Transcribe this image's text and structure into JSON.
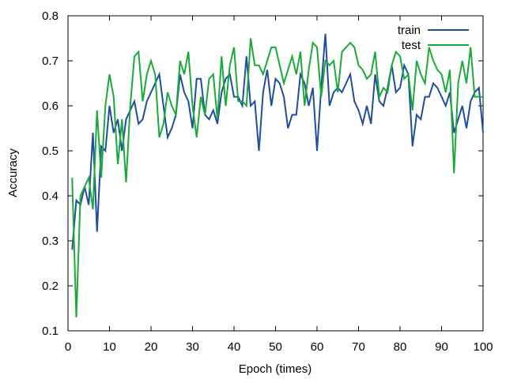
{
  "chart_data": {
    "type": "line",
    "title": "",
    "xlabel": "Epoch (times)",
    "ylabel": "Accuracy",
    "xlim": [
      0,
      100
    ],
    "ylim": [
      0.1,
      0.8
    ],
    "xticks": [
      0,
      10,
      20,
      30,
      40,
      50,
      60,
      70,
      80,
      90,
      100
    ],
    "yticks": [
      0.1,
      0.2,
      0.3,
      0.4,
      0.5,
      0.6,
      0.7,
      0.8
    ],
    "xtick_labels": [
      "0",
      "10",
      "20",
      "30",
      "40",
      "50",
      "60",
      "70",
      "80",
      "90",
      "100"
    ],
    "ytick_labels": [
      "0.1",
      "0.2",
      "0.3",
      "0.4",
      "0.5",
      "0.6",
      "0.7",
      "0.8"
    ],
    "grid": false,
    "legend_position": "top-right",
    "x": [
      1,
      2,
      3,
      4,
      5,
      6,
      7,
      8,
      9,
      10,
      11,
      12,
      13,
      14,
      15,
      16,
      17,
      18,
      19,
      20,
      21,
      22,
      23,
      24,
      25,
      26,
      27,
      28,
      29,
      30,
      31,
      32,
      33,
      34,
      35,
      36,
      37,
      38,
      39,
      40,
      41,
      42,
      43,
      44,
      45,
      46,
      47,
      48,
      49,
      50,
      51,
      52,
      53,
      54,
      55,
      56,
      57,
      58,
      59,
      60,
      61,
      62,
      63,
      64,
      65,
      66,
      67,
      68,
      69,
      70,
      71,
      72,
      73,
      74,
      75,
      76,
      77,
      78,
      79,
      80,
      81,
      82,
      83,
      84,
      85,
      86,
      87,
      88,
      89,
      90,
      91,
      92,
      93,
      94,
      95,
      96,
      97,
      98,
      99,
      100
    ],
    "series": [
      {
        "name": "train",
        "color": "#1f4e9c",
        "values": [
          0.28,
          0.39,
          0.38,
          0.42,
          0.38,
          0.54,
          0.32,
          0.51,
          0.5,
          0.6,
          0.54,
          0.57,
          0.5,
          0.57,
          0.59,
          0.61,
          0.56,
          0.57,
          0.61,
          0.63,
          0.65,
          0.67,
          0.6,
          0.53,
          0.55,
          0.58,
          0.67,
          0.63,
          0.61,
          0.55,
          0.66,
          0.66,
          0.58,
          0.57,
          0.59,
          0.56,
          0.63,
          0.66,
          0.67,
          0.62,
          0.62,
          0.6,
          0.71,
          0.6,
          0.61,
          0.5,
          0.63,
          0.68,
          0.6,
          0.66,
          0.65,
          0.62,
          0.55,
          0.58,
          0.58,
          0.67,
          0.65,
          0.6,
          0.64,
          0.5,
          0.64,
          0.76,
          0.6,
          0.63,
          0.64,
          0.63,
          0.65,
          0.67,
          0.61,
          0.59,
          0.56,
          0.6,
          0.56,
          0.67,
          0.61,
          0.6,
          0.64,
          0.69,
          0.63,
          0.64,
          0.69,
          0.67,
          0.51,
          0.58,
          0.57,
          0.62,
          0.62,
          0.65,
          0.64,
          0.62,
          0.6,
          0.63,
          0.54,
          0.57,
          0.6,
          0.55,
          0.61,
          0.63,
          0.64,
          0.54
        ]
      },
      {
        "name": "test",
        "color": "#1aaa3a",
        "values": [
          0.44,
          0.13,
          0.4,
          0.42,
          0.44,
          0.37,
          0.59,
          0.44,
          0.6,
          0.67,
          0.62,
          0.47,
          0.57,
          0.43,
          0.6,
          0.71,
          0.72,
          0.61,
          0.67,
          0.7,
          0.67,
          0.53,
          0.56,
          0.63,
          0.6,
          0.58,
          0.7,
          0.67,
          0.72,
          0.6,
          0.53,
          0.62,
          0.58,
          0.66,
          0.67,
          0.57,
          0.71,
          0.6,
          0.69,
          0.73,
          0.61,
          0.61,
          0.6,
          0.75,
          0.69,
          0.69,
          0.67,
          0.7,
          0.73,
          0.73,
          0.69,
          0.65,
          0.68,
          0.71,
          0.67,
          0.72,
          0.6,
          0.68,
          0.74,
          0.73,
          0.62,
          0.7,
          0.69,
          0.7,
          0.63,
          0.72,
          0.73,
          0.74,
          0.73,
          0.69,
          0.68,
          0.66,
          0.67,
          0.72,
          0.62,
          0.64,
          0.63,
          0.69,
          0.72,
          0.71,
          0.66,
          0.67,
          0.59,
          0.7,
          0.67,
          0.65,
          0.73,
          0.7,
          0.68,
          0.67,
          0.63,
          0.68,
          0.45,
          0.65,
          0.7,
          0.65,
          0.73,
          0.62,
          0.62,
          0.62
        ]
      }
    ]
  }
}
